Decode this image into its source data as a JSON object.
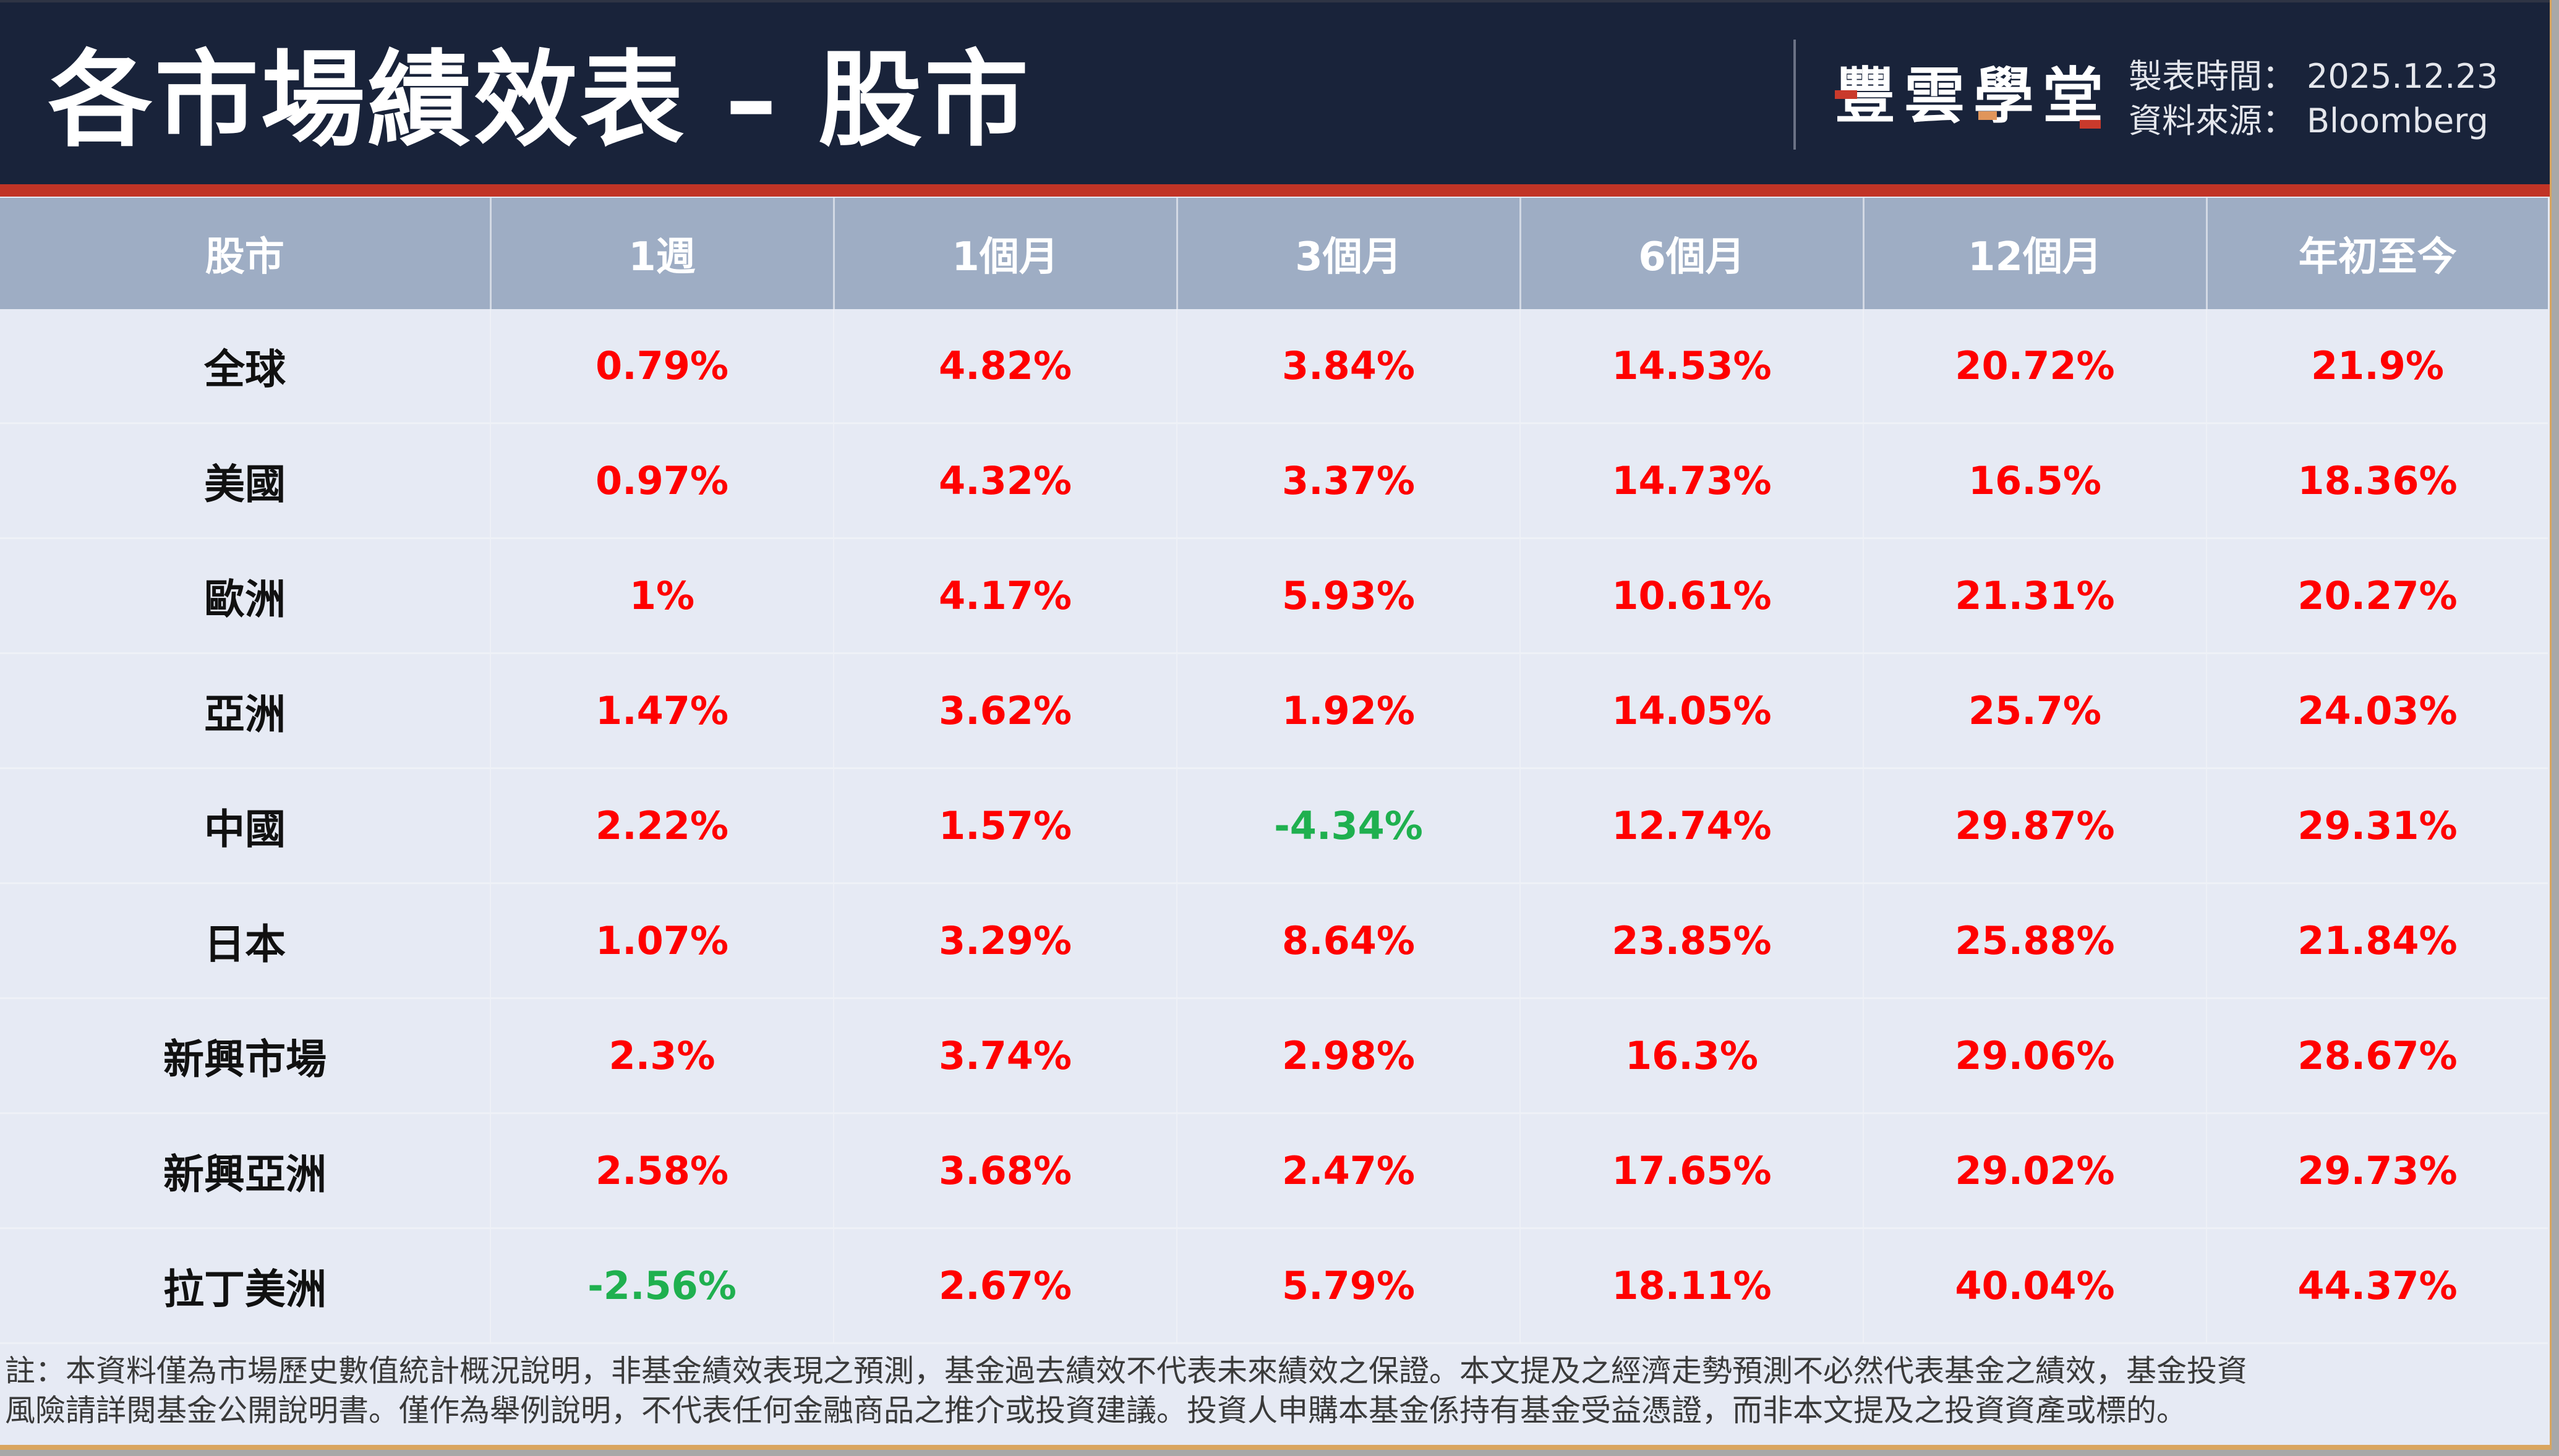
{
  "header": {
    "title": "各市場績效表 – 股市",
    "logo": {
      "text": "豐雲學堂",
      "chars": [
        "豐",
        "雲",
        "學",
        "堂"
      ]
    },
    "meta": {
      "date_label": "製表時間：",
      "date_value": "2025.12.23",
      "source_label": "資料來源：",
      "source_value": "Bloomberg"
    }
  },
  "colors": {
    "header_bg": "#19233a",
    "accent_bar": "#c13426",
    "table_header_bg": "#9eadc4",
    "table_body_bg": "#e6eaf4",
    "positive": "#ff0000",
    "negative": "#1fb04f",
    "frame": "#d9a55e"
  },
  "table": {
    "columns": [
      "股市",
      "1週",
      "1個月",
      "3個月",
      "6個月",
      "12個月",
      "年初至今"
    ],
    "rows": [
      {
        "market": "全球",
        "values": [
          "0.79%",
          "4.82%",
          "3.84%",
          "14.53%",
          "20.72%",
          "21.9%"
        ],
        "signs": [
          "pos",
          "pos",
          "pos",
          "pos",
          "pos",
          "pos"
        ]
      },
      {
        "market": "美國",
        "values": [
          "0.97%",
          "4.32%",
          "3.37%",
          "14.73%",
          "16.5%",
          "18.36%"
        ],
        "signs": [
          "pos",
          "pos",
          "pos",
          "pos",
          "pos",
          "pos"
        ]
      },
      {
        "market": "歐洲",
        "values": [
          "1%",
          "4.17%",
          "5.93%",
          "10.61%",
          "21.31%",
          "20.27%"
        ],
        "signs": [
          "pos",
          "pos",
          "pos",
          "pos",
          "pos",
          "pos"
        ]
      },
      {
        "market": "亞洲",
        "values": [
          "1.47%",
          "3.62%",
          "1.92%",
          "14.05%",
          "25.7%",
          "24.03%"
        ],
        "signs": [
          "pos",
          "pos",
          "pos",
          "pos",
          "pos",
          "pos"
        ]
      },
      {
        "market": "中國",
        "values": [
          "2.22%",
          "1.57%",
          "-4.34%",
          "12.74%",
          "29.87%",
          "29.31%"
        ],
        "signs": [
          "pos",
          "pos",
          "neg",
          "pos",
          "pos",
          "pos"
        ]
      },
      {
        "market": "日本",
        "values": [
          "1.07%",
          "3.29%",
          "8.64%",
          "23.85%",
          "25.88%",
          "21.84%"
        ],
        "signs": [
          "pos",
          "pos",
          "pos",
          "pos",
          "pos",
          "pos"
        ]
      },
      {
        "market": "新興市場",
        "values": [
          "2.3%",
          "3.74%",
          "2.98%",
          "16.3%",
          "29.06%",
          "28.67%"
        ],
        "signs": [
          "pos",
          "pos",
          "pos",
          "pos",
          "pos",
          "pos"
        ]
      },
      {
        "market": "新興亞洲",
        "values": [
          "2.58%",
          "3.68%",
          "2.47%",
          "17.65%",
          "29.02%",
          "29.73%"
        ],
        "signs": [
          "pos",
          "pos",
          "pos",
          "pos",
          "pos",
          "pos"
        ]
      },
      {
        "market": "拉丁美洲",
        "values": [
          "-2.56%",
          "2.67%",
          "5.79%",
          "18.11%",
          "40.04%",
          "44.37%"
        ],
        "signs": [
          "neg",
          "pos",
          "pos",
          "pos",
          "pos",
          "pos"
        ]
      }
    ]
  },
  "footnote": {
    "line1": "註：本資料僅為市場歷史數值統計概況說明，非基金績效表現之預測，基金過去績效不代表未來績效之保證。本文提及之經濟走勢預測不必然代表基金之績效，基金投資",
    "line2": "風險請詳閱基金公開說明書。僅作為舉例說明，不代表任何金融商品之推介或投資建議。投資人申購本基金係持有基金受益憑證，而非本文提及之投資資產或標的。"
  }
}
